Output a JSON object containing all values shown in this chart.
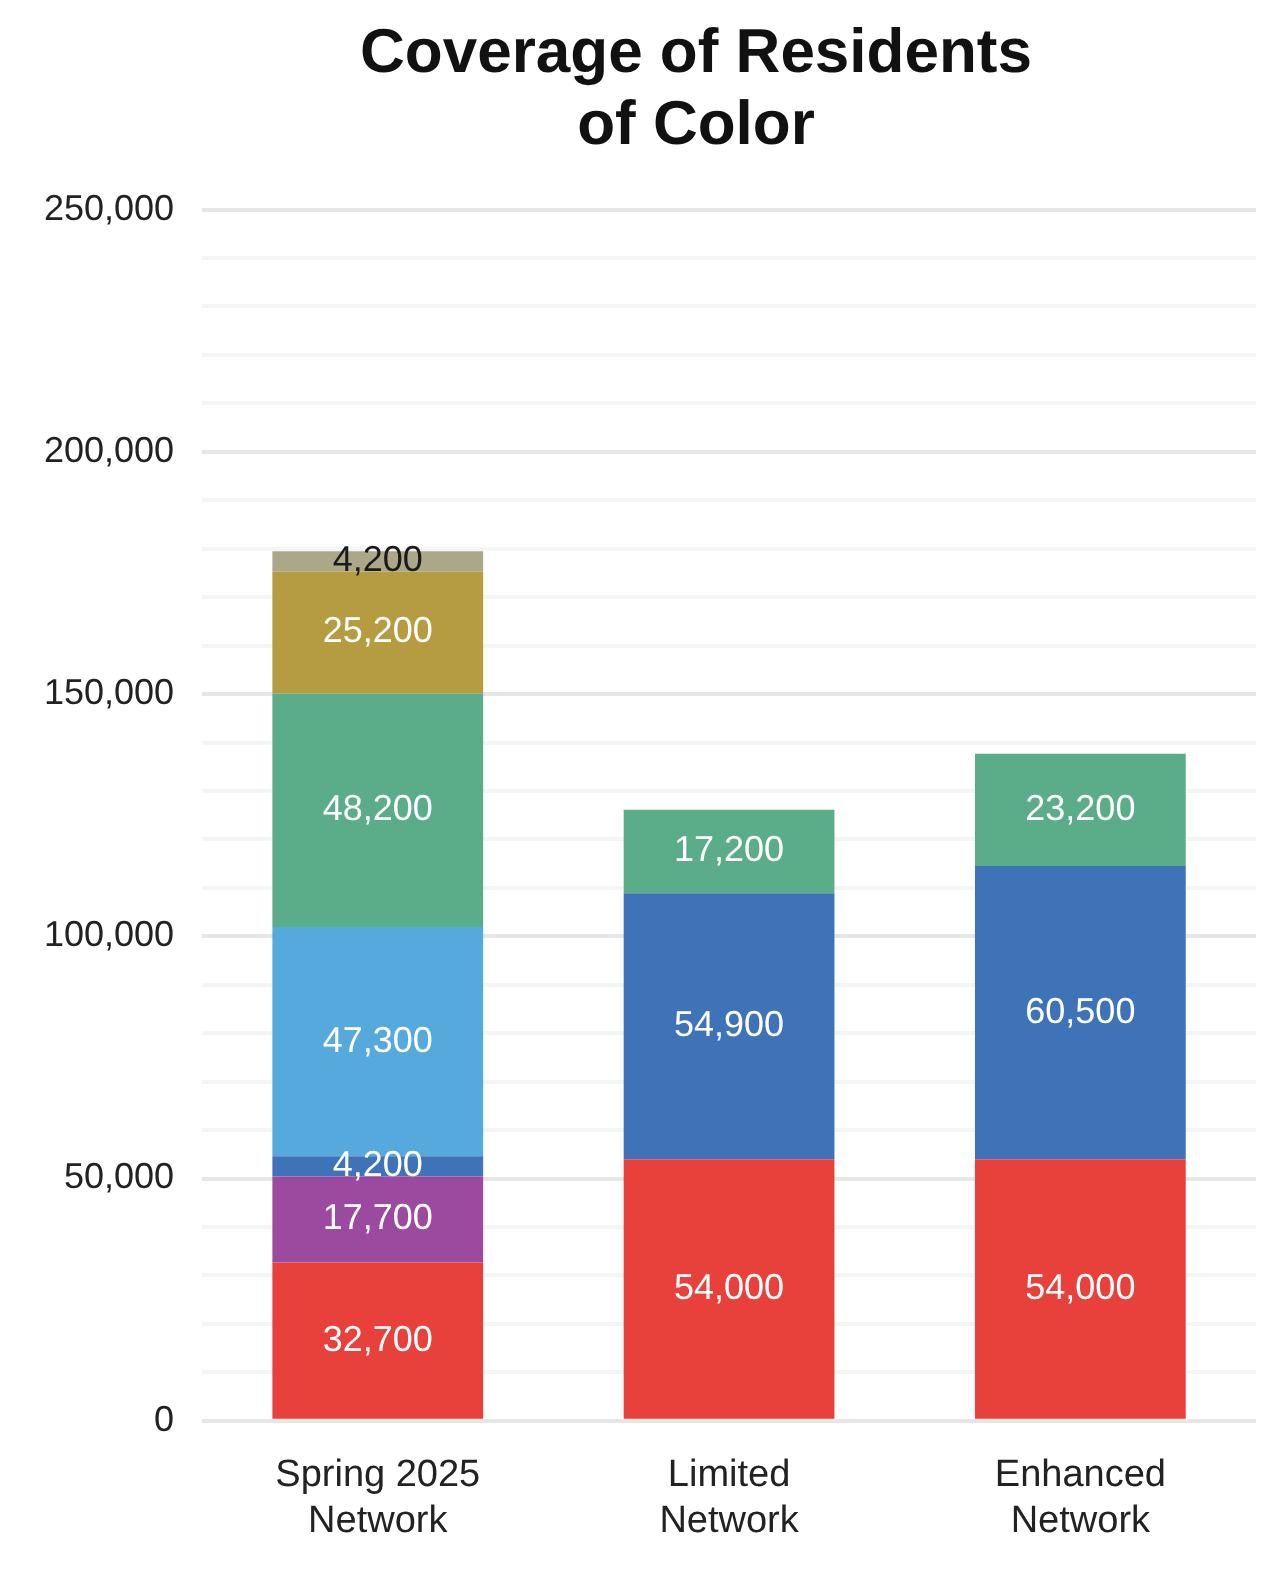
{
  "chart_data": {
    "type": "bar",
    "title": "Coverage of Residents of Color",
    "categories": [
      "Spring 2025 Network",
      "Limited Network",
      "Enhanced Network"
    ],
    "stacked": true,
    "grid": "y",
    "legend": false,
    "ylim": [
      0,
      250000
    ],
    "yticks": [
      {
        "value": 0,
        "label": "0"
      },
      {
        "value": 10000,
        "label": null
      },
      {
        "value": 20000,
        "label": null
      },
      {
        "value": 30000,
        "label": null
      },
      {
        "value": 40000,
        "label": null
      },
      {
        "value": 50000,
        "label": "50,000"
      },
      {
        "value": 60000,
        "label": null
      },
      {
        "value": 70000,
        "label": null
      },
      {
        "value": 80000,
        "label": null
      },
      {
        "value": 90000,
        "label": null
      },
      {
        "value": 100000,
        "label": "100,000"
      },
      {
        "value": 110000,
        "label": null
      },
      {
        "value": 120000,
        "label": null
      },
      {
        "value": 130000,
        "label": null
      },
      {
        "value": 140000,
        "label": null
      },
      {
        "value": 150000,
        "label": "150,000"
      },
      {
        "value": 160000,
        "label": null
      },
      {
        "value": 170000,
        "label": null
      },
      {
        "value": 180000,
        "label": null
      },
      {
        "value": 190000,
        "label": null
      },
      {
        "value": 200000,
        "label": "200,000"
      },
      {
        "value": 210000,
        "label": null
      },
      {
        "value": 220000,
        "label": null
      },
      {
        "value": 230000,
        "label": null
      },
      {
        "value": 240000,
        "label": null
      },
      {
        "value": 250000,
        "label": "250,000"
      }
    ],
    "series": [
      {
        "color": "#e8403a",
        "values": [
          32700,
          54000,
          54000
        ],
        "value_labels": [
          "32,700",
          "54,000",
          "54,000"
        ]
      },
      {
        "color": "#9b4aa0",
        "values": [
          17700,
          null,
          null
        ],
        "value_labels": [
          "17,700",
          null,
          null
        ]
      },
      {
        "color": "#3f73b8",
        "values": [
          4200,
          54900,
          60500
        ],
        "value_labels": [
          "4,200",
          "54,900",
          "60,500"
        ]
      },
      {
        "color": "#55a9dc",
        "values": [
          47300,
          null,
          null
        ],
        "value_labels": [
          "47,300",
          null,
          null
        ]
      },
      {
        "color": "#5aad88",
        "values": [
          48200,
          17200,
          23200
        ],
        "value_labels": [
          "48,200",
          "17,200",
          "23,200"
        ]
      },
      {
        "color": "#b59c40",
        "values": [
          25200,
          null,
          null
        ],
        "value_labels": [
          "25,200",
          null,
          null
        ]
      },
      {
        "color": "#aba88a",
        "values": [
          4200,
          null,
          null
        ],
        "value_labels": [
          "4,200",
          null,
          null
        ]
      }
    ]
  }
}
